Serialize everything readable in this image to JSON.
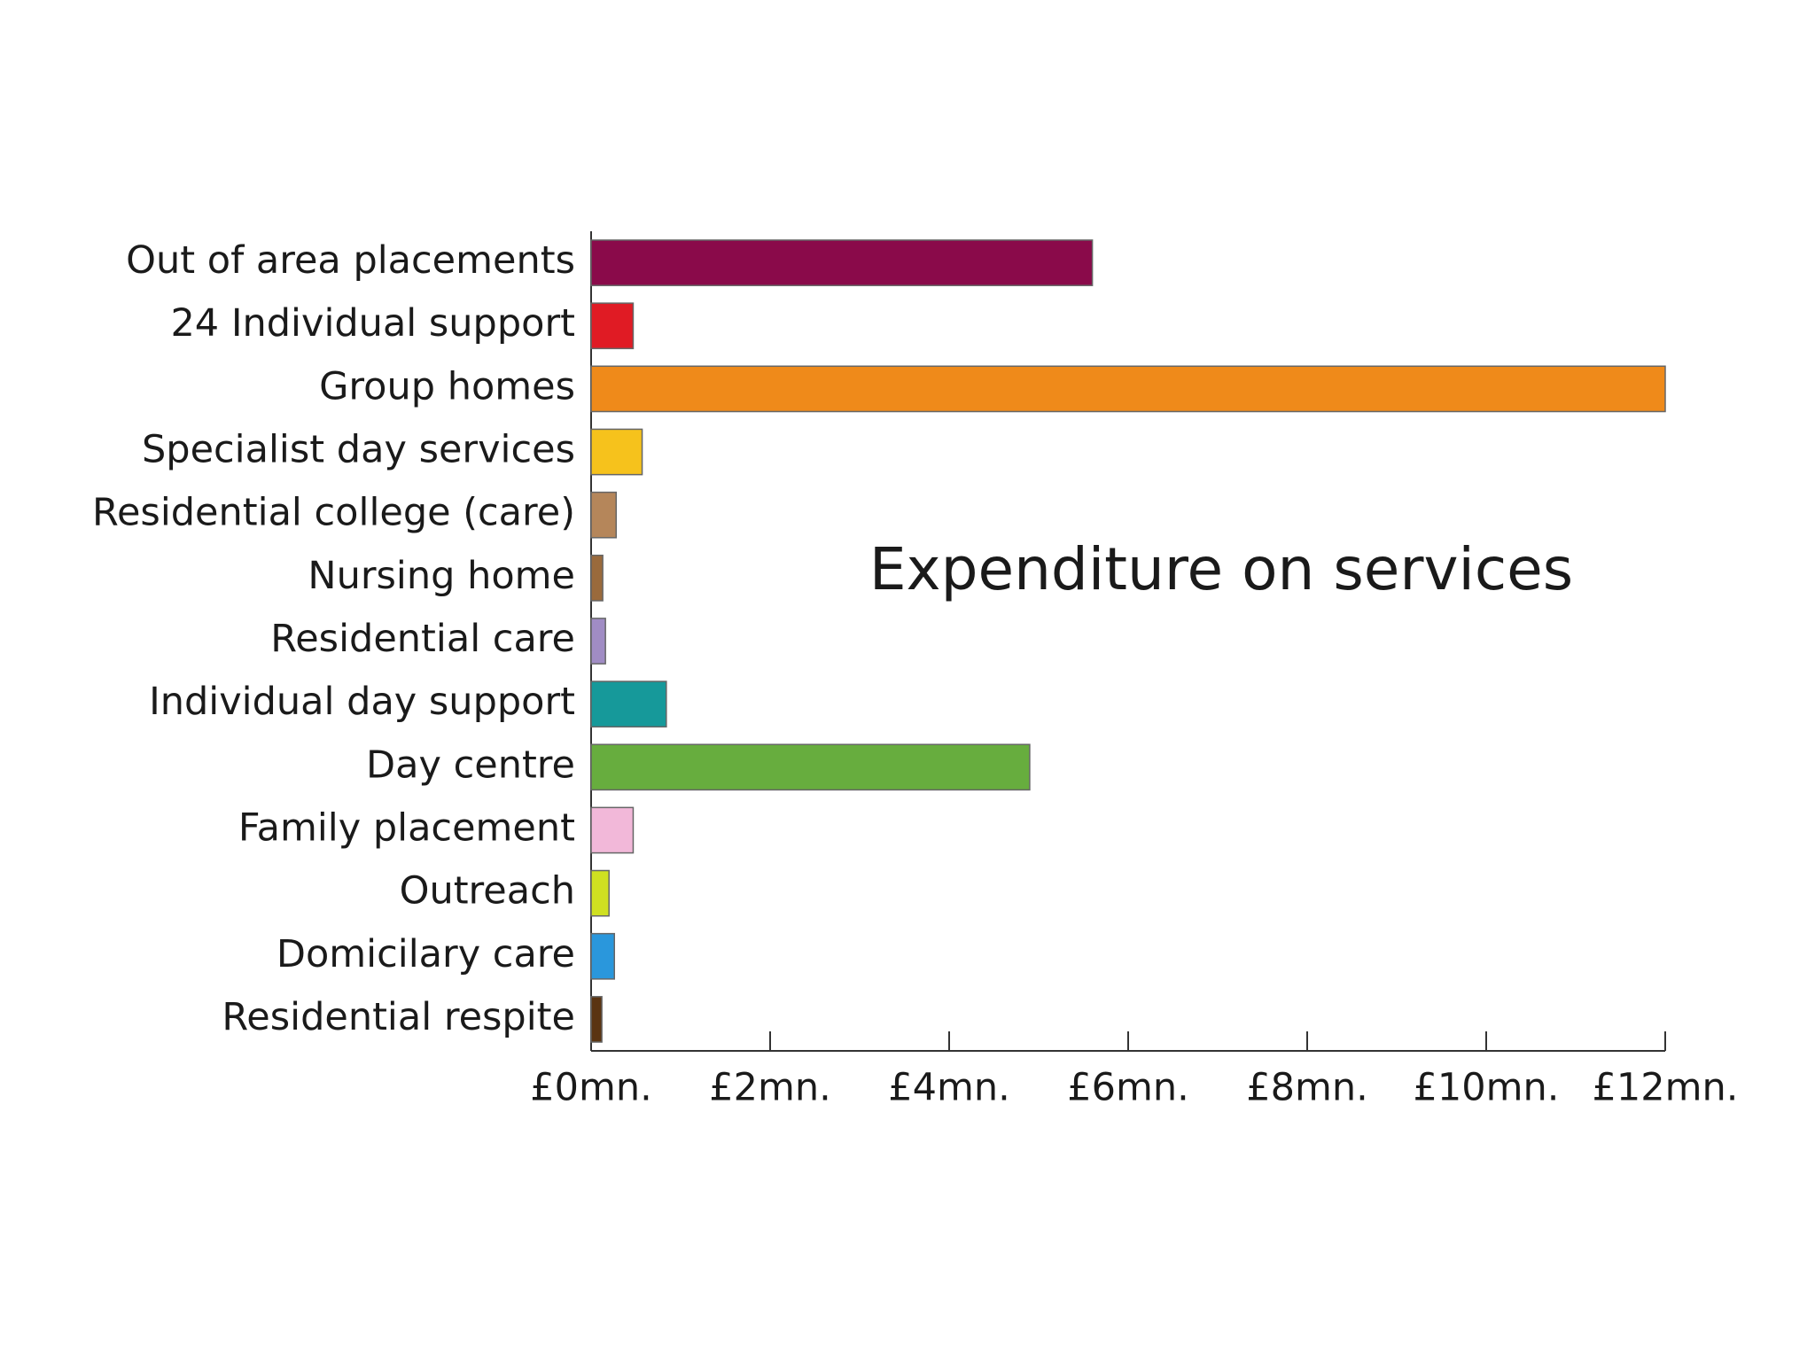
{
  "chart_data": {
    "type": "hbar",
    "title": "Expenditure on services",
    "categories": [
      "Out of area placements",
      "24 Individual support",
      "Group homes",
      "Specialist day services",
      "Residential college (care)",
      "Nursing home",
      "Residential care",
      "Individual day support",
      "Day centre",
      "Family placement",
      "Outreach",
      "Domicilary care",
      "Residential respite"
    ],
    "values": [
      5.6,
      0.47,
      12.0,
      0.57,
      0.28,
      0.13,
      0.16,
      0.84,
      4.9,
      0.47,
      0.2,
      0.26,
      0.12
    ],
    "colors": [
      "#8a0a4a",
      "#e01b24",
      "#ef8a1a",
      "#f6c21c",
      "#b5865a",
      "#9a6a3c",
      "#a08cc4",
      "#16999a",
      "#67ad3e",
      "#f2b8d9",
      "#cfe021",
      "#2a97dc",
      "#5a3412"
    ],
    "xlim": [
      0,
      12
    ],
    "xticks": [
      {
        "value": 0,
        "label": "£0mn."
      },
      {
        "value": 2,
        "label": "£2mn."
      },
      {
        "value": 4,
        "label": "£4mn."
      },
      {
        "value": 6,
        "label": "£6mn."
      },
      {
        "value": 8,
        "label": "£8mn."
      },
      {
        "value": 10,
        "label": "£10mn."
      },
      {
        "value": 12,
        "label": "£12mn."
      }
    ]
  }
}
